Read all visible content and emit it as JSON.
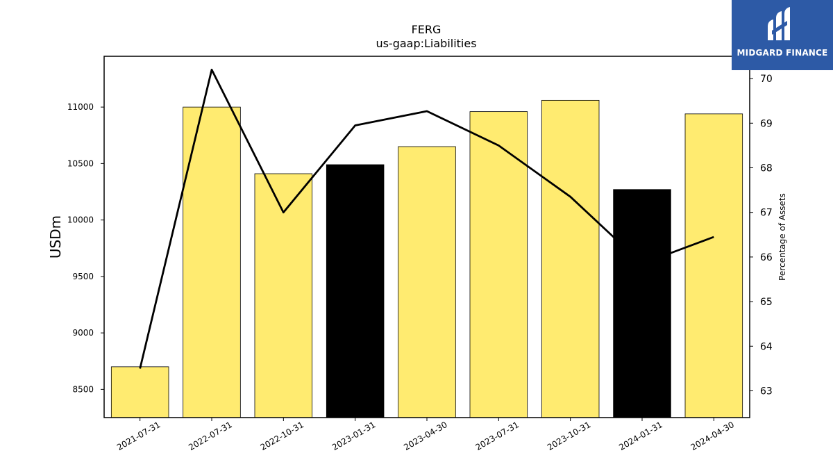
{
  "chart_data": {
    "type": "bar",
    "title": "FERG",
    "subtitle": "us-gaap:Liabilities",
    "ylabel": "USDm",
    "y2label": "Percentage of Assets",
    "categories": [
      "2021-07-31",
      "2022-07-31",
      "2022-10-31",
      "2023-01-31",
      "2023-04-30",
      "2023-07-31",
      "2023-10-31",
      "2024-01-31",
      "2024-04-30"
    ],
    "bar_values": [
      8700,
      11000,
      10410,
      10490,
      10650,
      10960,
      11060,
      10270,
      10940
    ],
    "bar_colors": [
      "#ffeb70",
      "#ffeb70",
      "#ffeb70",
      "#000000",
      "#ffeb70",
      "#ffeb70",
      "#ffeb70",
      "#000000",
      "#ffeb70"
    ],
    "line_values": [
      63.5,
      70.2,
      67.0,
      68.95,
      69.27,
      68.5,
      67.35,
      65.85,
      66.45
    ],
    "ylim": [
      8250,
      11450
    ],
    "y2lim": [
      62.4,
      70.5
    ],
    "yticks": [
      "8500",
      "9000",
      "9500",
      "10000",
      "10500",
      "11000"
    ],
    "y2ticks": [
      "63",
      "64",
      "65",
      "66",
      "67",
      "68",
      "69",
      "70"
    ],
    "grid": false
  },
  "logo": {
    "text": "MIDGARD FINANCE",
    "color": "#2d5aa6"
  }
}
